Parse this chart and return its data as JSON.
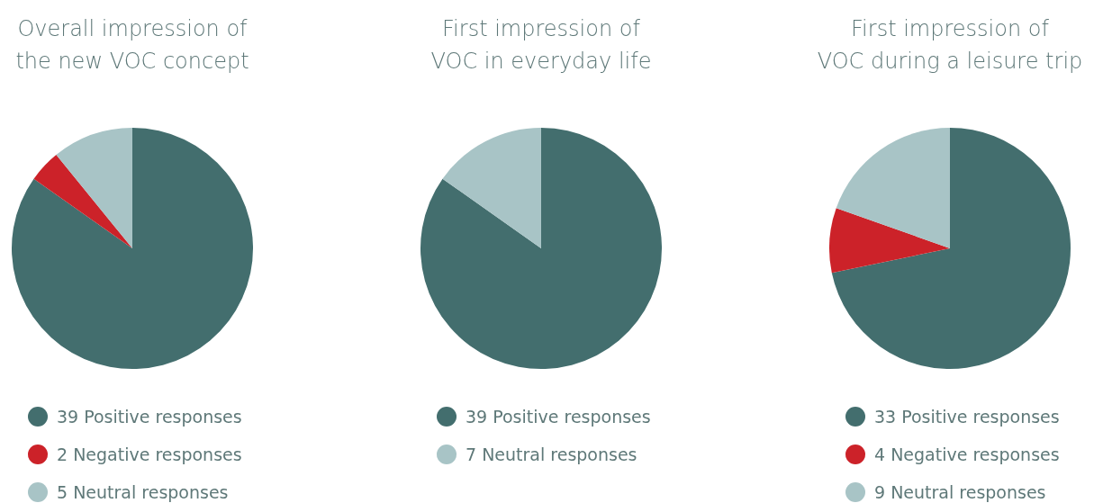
{
  "chart_data": [
    {
      "type": "pie",
      "title": "Overall impression of the new VOC concept",
      "categories": [
        "39 Positive responses",
        "2 Negative responses",
        "5 Neutral responses"
      ],
      "values": [
        39,
        2,
        5
      ],
      "colors": [
        "#436e6e",
        "#cc2229",
        "#a8c4c6"
      ],
      "legend": "bottom"
    },
    {
      "type": "pie",
      "title": "First impression of VOC in everyday life",
      "categories": [
        "39 Positive responses",
        "7 Neutral responses"
      ],
      "values": [
        39,
        7
      ],
      "colors": [
        "#436e6e",
        "#a8c4c6"
      ],
      "legend": "bottom"
    },
    {
      "type": "pie",
      "title": "First impression of VOC during a leisure trip",
      "categories": [
        "33 Positive responses",
        "4 Negative responses",
        "9 Neutral responses"
      ],
      "values": [
        33,
        4,
        9
      ],
      "colors": [
        "#436e6e",
        "#cc2229",
        "#a8c4c6"
      ],
      "legend": "bottom"
    }
  ]
}
